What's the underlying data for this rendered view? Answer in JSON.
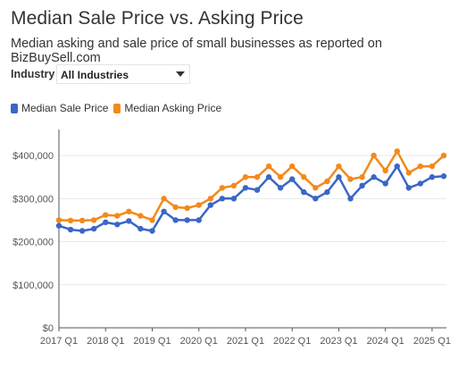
{
  "header": {
    "title": "Median Sale Price vs. Asking Price",
    "subtitle": "Median asking and sale price of small businesses as reported on BizBuySell.com"
  },
  "filter": {
    "label": "Industry",
    "selected": "All Industries",
    "icon": "chevron-down-icon"
  },
  "colors": {
    "sale": "#3a66c6",
    "asking": "#f28a1c",
    "axis": "#555555",
    "grid": "#e9e9e9"
  },
  "chart_data": {
    "type": "line",
    "title": "Median Sale Price vs. Asking Price",
    "xlabel": "",
    "ylabel": "",
    "ylim": [
      0,
      450000
    ],
    "y_ticks": [
      "$0",
      "$100,000",
      "$200,000",
      "$300,000",
      "$400,000"
    ],
    "x_ticks": [
      "2017 Q1",
      "2018 Q1",
      "2019 Q1",
      "2020 Q1",
      "2021 Q1",
      "2022 Q1",
      "2023 Q1",
      "2024 Q1",
      "2025 Q1"
    ],
    "grid": "horizontal",
    "legend": "top-left",
    "categories": [
      "2017 Q1",
      "2017 Q2",
      "2017 Q3",
      "2017 Q4",
      "2018 Q1",
      "2018 Q2",
      "2018 Q3",
      "2018 Q4",
      "2019 Q1",
      "2019 Q2",
      "2019 Q3",
      "2019 Q4",
      "2020 Q1",
      "2020 Q2",
      "2020 Q3",
      "2020 Q4",
      "2021 Q1",
      "2021 Q2",
      "2021 Q3",
      "2021 Q4",
      "2022 Q1",
      "2022 Q2",
      "2022 Q3",
      "2022 Q4",
      "2023 Q1",
      "2023 Q2",
      "2023 Q3",
      "2023 Q4",
      "2024 Q1",
      "2024 Q2",
      "2024 Q3",
      "2024 Q4",
      "2025 Q1",
      "2025 Q2"
    ],
    "series": [
      {
        "name": "Median Sale Price",
        "values": [
          237000,
          228000,
          225000,
          230000,
          245000,
          240000,
          248000,
          230000,
          225000,
          270000,
          250000,
          250000,
          250000,
          285000,
          300000,
          300000,
          325000,
          320000,
          350000,
          325000,
          345000,
          315000,
          300000,
          315000,
          350000,
          300000,
          330000,
          350000,
          335000,
          375000,
          325000,
          335000,
          350000,
          352000
        ]
      },
      {
        "name": "Median Asking Price",
        "values": [
          250000,
          249000,
          249000,
          250000,
          262000,
          260000,
          270000,
          260000,
          250000,
          300000,
          280000,
          278000,
          285000,
          300000,
          325000,
          330000,
          350000,
          350000,
          375000,
          350000,
          375000,
          350000,
          325000,
          340000,
          375000,
          345000,
          350000,
          400000,
          365000,
          410000,
          360000,
          375000,
          375000,
          400000
        ]
      }
    ]
  }
}
